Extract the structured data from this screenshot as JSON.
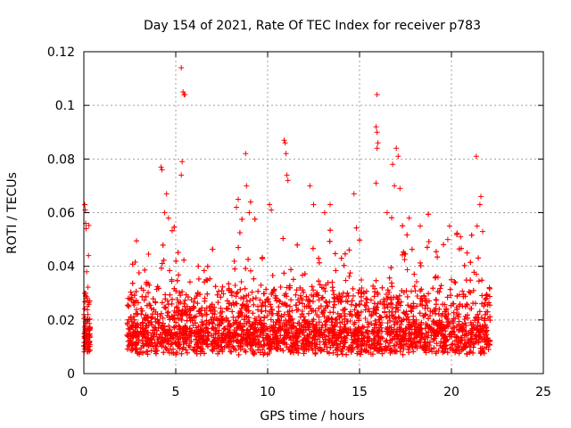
{
  "chart_data": {
    "type": "scatter",
    "title": "Day 154 of 2021, Rate Of TEC Index for receiver p783",
    "xlabel": "GPS time / hours",
    "ylabel": "ROTI / TECUs",
    "xlim": [
      0,
      25
    ],
    "ylim": [
      0,
      0.12
    ],
    "xticks": [
      0,
      5,
      10,
      15,
      20,
      25
    ],
    "yticks": [
      0,
      0.02,
      0.04,
      0.06,
      0.08,
      0.1,
      0.12
    ],
    "xtick_labels": [
      "0",
      "5",
      "10",
      "15",
      "20",
      "25"
    ],
    "ytick_labels": [
      "0",
      "0.02",
      "0.04",
      "0.06",
      "0.08",
      "0.1",
      "0.12"
    ],
    "grid": true,
    "marker": "+",
    "color": "#ff0000",
    "data_segments": [
      {
        "x_start": 0.0,
        "x_end": 0.35,
        "baseline": 0.012,
        "spread": 0.015
      },
      {
        "x_start": 2.35,
        "x_end": 22.1,
        "baseline": 0.012,
        "spread": 0.02
      }
    ],
    "series": [
      {
        "points": [
          [
            0.05,
            0.063
          ],
          [
            0.08,
            0.061
          ],
          [
            0.1,
            0.056
          ],
          [
            0.12,
            0.054
          ],
          [
            0.15,
            0.038
          ],
          [
            0.1,
            0.03
          ],
          [
            0.2,
            0.025
          ],
          [
            0.22,
            0.022
          ],
          [
            5.3,
            0.114
          ],
          [
            5.4,
            0.105
          ],
          [
            5.45,
            0.104
          ],
          [
            5.5,
            0.104
          ],
          [
            5.35,
            0.079
          ],
          [
            5.3,
            0.074
          ],
          [
            4.2,
            0.077
          ],
          [
            4.25,
            0.076
          ],
          [
            4.5,
            0.067
          ],
          [
            4.4,
            0.06
          ],
          [
            4.6,
            0.058
          ],
          [
            8.8,
            0.082
          ],
          [
            8.85,
            0.07
          ],
          [
            9.0,
            0.06
          ],
          [
            8.4,
            0.065
          ],
          [
            8.3,
            0.062
          ],
          [
            10.9,
            0.087
          ],
          [
            10.95,
            0.086
          ],
          [
            11.0,
            0.082
          ],
          [
            11.05,
            0.074
          ],
          [
            11.1,
            0.072
          ],
          [
            10.1,
            0.063
          ],
          [
            10.2,
            0.061
          ],
          [
            12.3,
            0.07
          ],
          [
            12.5,
            0.063
          ],
          [
            13.1,
            0.06
          ],
          [
            13.4,
            0.063
          ],
          [
            15.95,
            0.104
          ],
          [
            15.9,
            0.092
          ],
          [
            15.95,
            0.09
          ],
          [
            16.0,
            0.086
          ],
          [
            15.95,
            0.084
          ],
          [
            15.9,
            0.071
          ],
          [
            16.8,
            0.078
          ],
          [
            17.0,
            0.084
          ],
          [
            17.1,
            0.081
          ],
          [
            16.9,
            0.07
          ],
          [
            17.2,
            0.069
          ],
          [
            14.7,
            0.067
          ],
          [
            16.5,
            0.06
          ],
          [
            17.7,
            0.058
          ],
          [
            21.35,
            0.081
          ],
          [
            21.6,
            0.066
          ],
          [
            21.55,
            0.063
          ],
          [
            21.4,
            0.055
          ],
          [
            21.7,
            0.053
          ],
          [
            19.9,
            0.055
          ],
          [
            19.8,
            0.05
          ],
          [
            20.5,
            0.051
          ],
          [
            18.3,
            0.055
          ]
        ]
      }
    ]
  }
}
